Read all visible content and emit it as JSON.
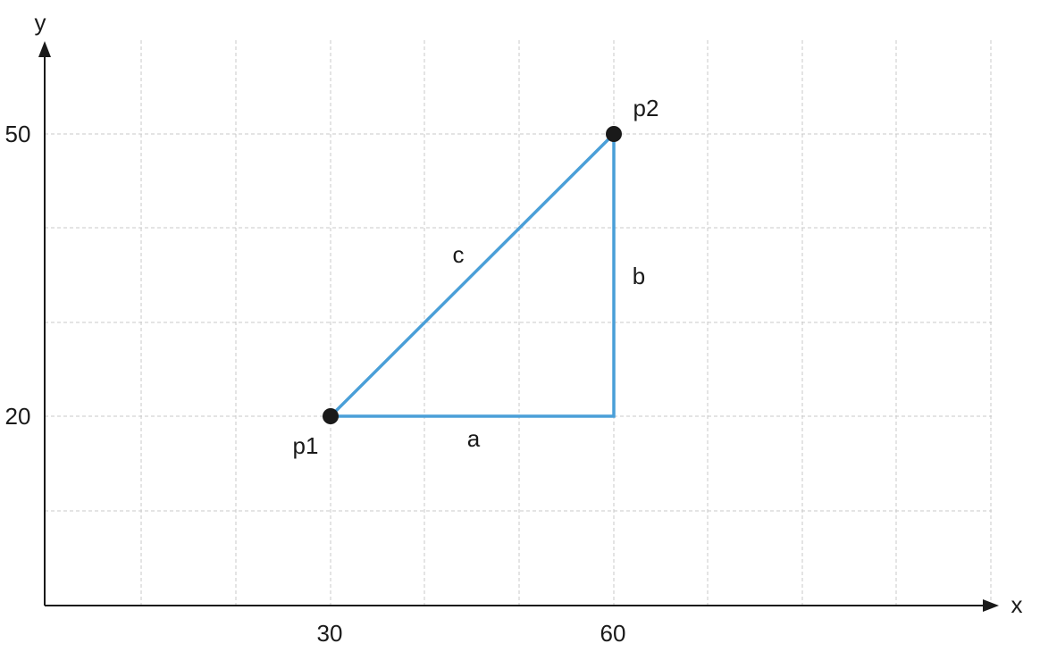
{
  "axes": {
    "x_label": "x",
    "y_label": "y",
    "x_ticks": [
      30,
      60
    ],
    "y_ticks": [
      20,
      50
    ]
  },
  "points": {
    "p1": {
      "label": "p1",
      "x": 30,
      "y": 20
    },
    "p2": {
      "label": "p2",
      "x": 60,
      "y": 50
    }
  },
  "sides": {
    "a": "a",
    "b": "b",
    "c": "c"
  },
  "colors": {
    "triangle": "#4a9fd8",
    "points": "#1a1a1a",
    "grid": "#c8c8c8"
  },
  "grid": true
}
